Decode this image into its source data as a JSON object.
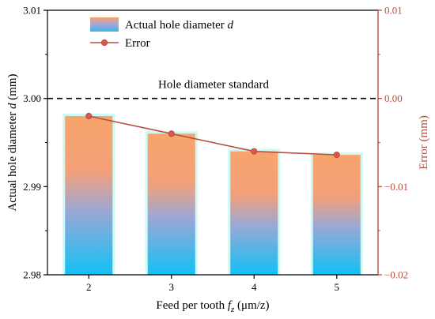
{
  "chart_data": {
    "type": "bar",
    "categories": [
      "2",
      "3",
      "4",
      "5"
    ],
    "bar_series": {
      "name": "Actual hole diameter",
      "name_italic": "d",
      "values": [
        2.998,
        2.996,
        2.994,
        2.9936
      ]
    },
    "line_series": {
      "name": "Error",
      "values": [
        -0.002,
        -0.004,
        -0.006,
        -0.0064
      ],
      "color": "#b5513f",
      "marker_color": "#e0554e"
    },
    "xlabel": {
      "text": "Feed per tooth ",
      "var": "f",
      "sub": "z",
      "unit": " (μm/z)"
    },
    "ylabel_left": {
      "text": "Actual hole diameter ",
      "var": "d",
      "unit": " (mm)"
    },
    "ylabel_right": "Error (mm)",
    "ylim_left": [
      2.98,
      3.01
    ],
    "ylim_right": [
      -0.02,
      0.01
    ],
    "yticks_left": [
      "2.98",
      "2.99",
      "3.00",
      "3.01"
    ],
    "yticks_right": [
      "−0.02",
      "−0.01",
      "0.00",
      "0.01"
    ],
    "reference_line": {
      "value": 3.0,
      "label": "Hole diameter standard"
    },
    "legend_position": "top-left",
    "colors": {
      "bar_top": "#f7a46c",
      "bar_bottom": "#12c0f5",
      "bar_glow": "#c8f7f3",
      "right_axis": "#b5513f",
      "left_axis": "#000000"
    },
    "grid": false
  }
}
